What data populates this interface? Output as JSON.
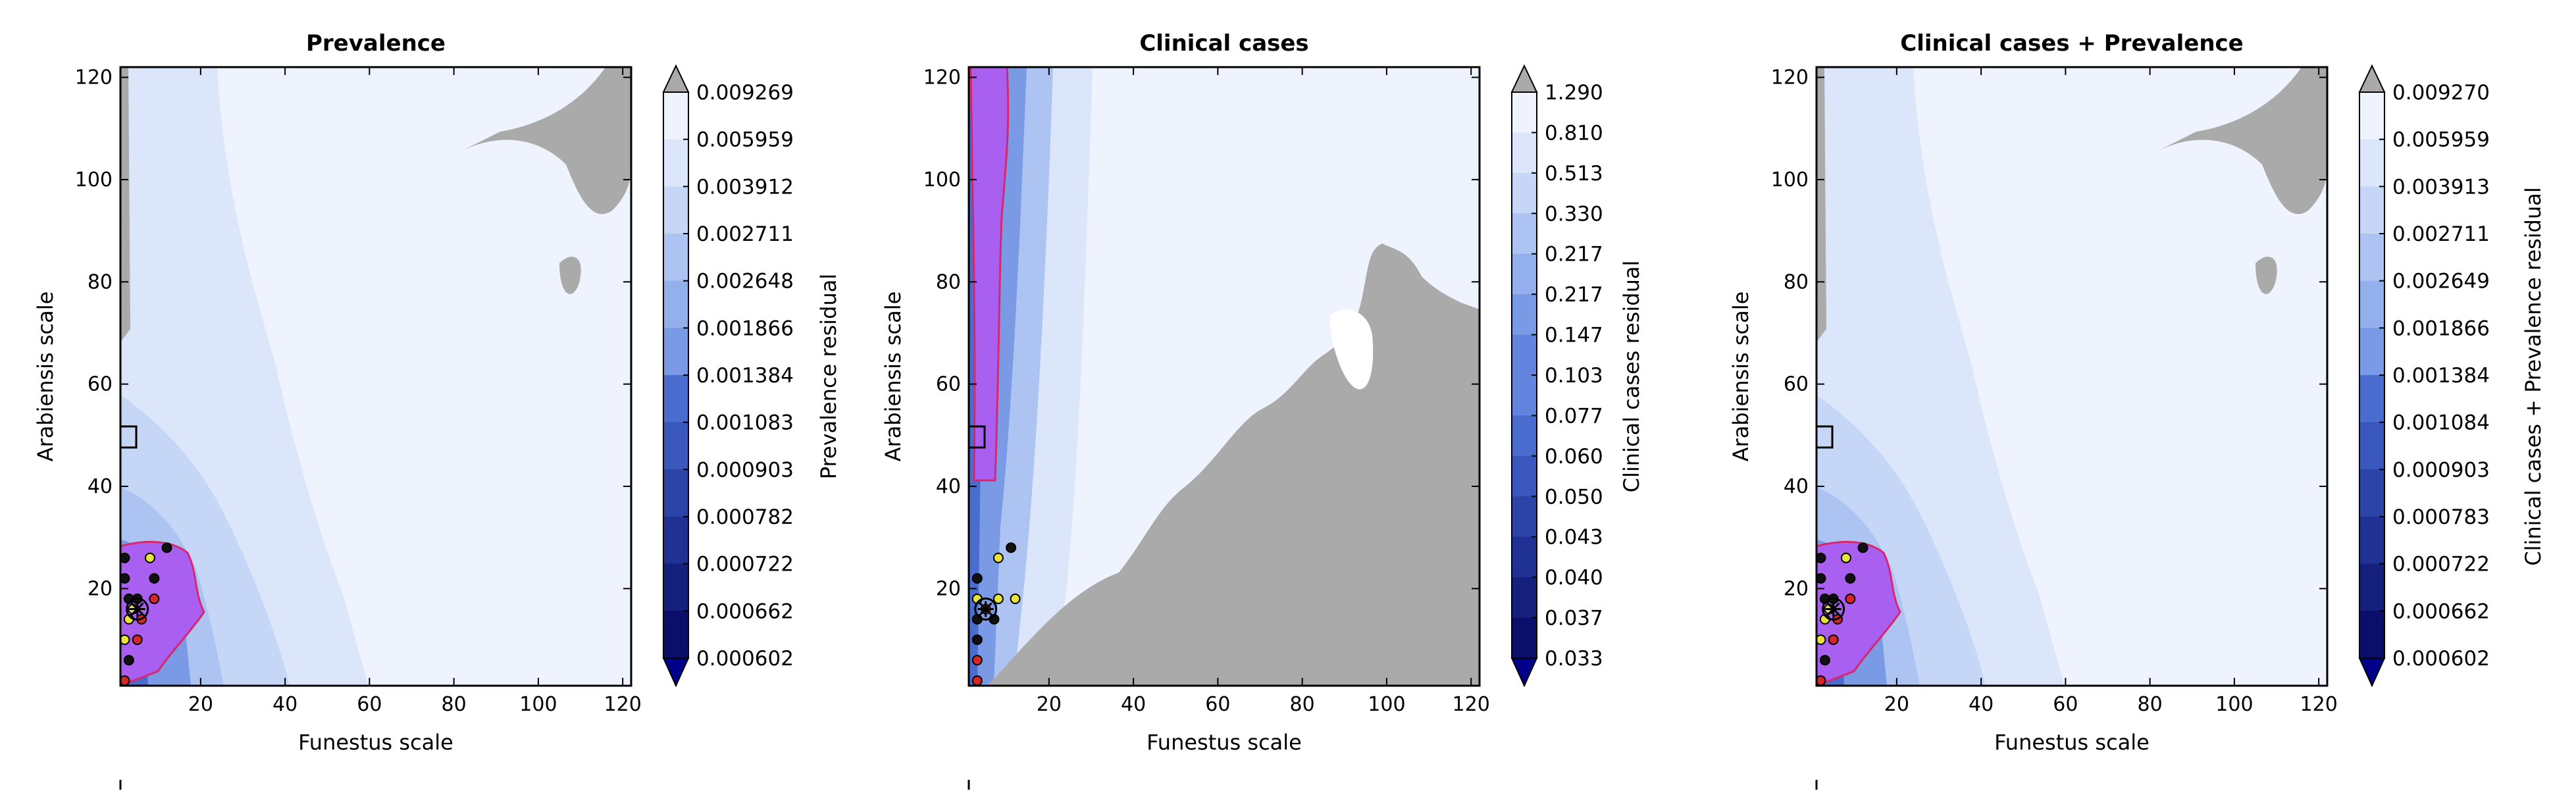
{
  "chart_data": [
    {
      "type": "contour",
      "title": "Prevalence",
      "xlabel": "Funestus scale",
      "ylabel": "Arabiensis scale",
      "xlim": [
        1,
        122
      ],
      "ylim": [
        1,
        122
      ],
      "x_ticks": [
        "20",
        "40",
        "60",
        "80",
        "100",
        "120"
      ],
      "y_ticks": [
        "20",
        "40",
        "60",
        "80",
        "100",
        "120"
      ],
      "colorbar": {
        "label": "Prevalence residual",
        "levels": [
          "0.009269",
          "0.005959",
          "0.003912",
          "0.002711",
          "0.002648",
          "0.001866",
          "0.001384",
          "0.001083",
          "0.000903",
          "0.000782",
          "0.000722",
          "0.000662",
          "0.000602"
        ],
        "extend": "both"
      }
    },
    {
      "type": "contour",
      "title": "Clinical cases",
      "xlabel": "Funestus scale",
      "ylabel": "Arabiensis scale",
      "xlim": [
        1,
        122
      ],
      "ylim": [
        1,
        122
      ],
      "x_ticks": [
        "20",
        "40",
        "60",
        "80",
        "100",
        "120"
      ],
      "y_ticks": [
        "20",
        "40",
        "60",
        "80",
        "100",
        "120"
      ],
      "colorbar": {
        "label": "Clinical cases residual",
        "levels": [
          "1.290",
          "0.810",
          "0.513",
          "0.330",
          "0.217",
          "0.217",
          "0.147",
          "0.103",
          "0.077",
          "0.060",
          "0.050",
          "0.043",
          "0.040",
          "0.037",
          "0.033"
        ],
        "extend": "both"
      }
    },
    {
      "type": "contour",
      "title": "Clinical cases + Prevalence",
      "xlabel": "Funestus scale",
      "ylabel": "Arabiensis scale",
      "xlim": [
        1,
        122
      ],
      "ylim": [
        1,
        122
      ],
      "x_ticks": [
        "20",
        "40",
        "60",
        "80",
        "100",
        "120"
      ],
      "y_ticks": [
        "20",
        "40",
        "60",
        "80",
        "100",
        "120"
      ],
      "colorbar": {
        "label": "Clinical cases + Prevalence residual",
        "levels": [
          "0.009270",
          "0.005959",
          "0.003913",
          "0.002711",
          "0.002649",
          "0.001866",
          "0.001384",
          "0.001084",
          "0.000903",
          "0.000783",
          "0.000722",
          "0.000662",
          "0.000602"
        ],
        "extend": "both"
      }
    }
  ],
  "colors": {
    "fill_levels": [
      "#eef3fd",
      "#dbe6fb",
      "#c6d6f7",
      "#adc3f1",
      "#93afec",
      "#7a9ae6",
      "#6283de",
      "#4b6ccf",
      "#3a57bd",
      "#2c43a8",
      "#1f3193",
      "#14207c",
      "#0a0f6a"
    ],
    "over": "#aaaaaa",
    "under": "#00008b",
    "pareto_region": "#a95ff0",
    "pareto_outline": "#d6286e",
    "marker_black": "#111111",
    "marker_yellow": "#e6e43a",
    "marker_red": "#d62728"
  }
}
